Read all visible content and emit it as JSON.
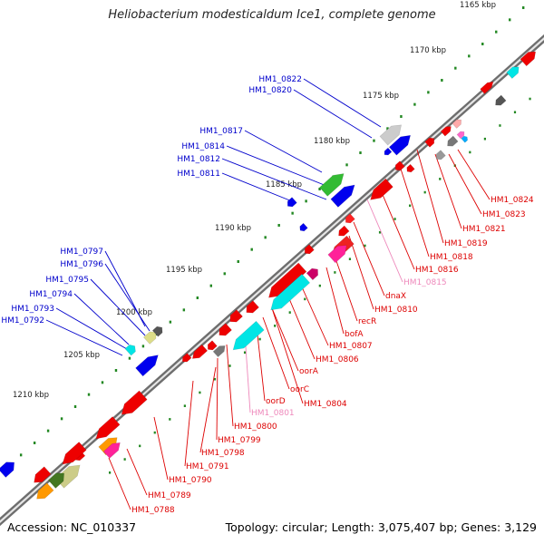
{
  "title": "Heliobacterium modesticaldum Ice1, complete genome",
  "accession": "Accession: NC_010337",
  "topology": "Topology: circular; Length: 3,075,407 bp; Genes: 3,129",
  "colors": {
    "forward_label": "#0000cc",
    "reverse_label": "#dd0000",
    "pseudo_label": "#ee88bb",
    "ruler_tick": "#228822",
    "backbone": "#777777"
  },
  "ruler": [
    "1165 kbp",
    "1170 kbp",
    "1175 kbp",
    "1180 kbp",
    "1185 kbp",
    "1190 kbp",
    "1195 kbp",
    "1200 kbp",
    "1205 kbp",
    "1210 kbp"
  ],
  "forward_labels": [
    "HM1_0822",
    "HM1_0820",
    "HM1_0817",
    "HM1_0814",
    "HM1_0812",
    "HM1_0811",
    "HM1_0797",
    "HM1_0796",
    "HM1_0795",
    "HM1_0794",
    "HM1_0793",
    "HM1_0792"
  ],
  "reverse_labels": [
    "HM1_0824",
    "HM1_0823",
    "HM1_0821",
    "HM1_0819",
    "HM1_0818",
    "HM1_0816",
    "HM1_0815",
    "dnaX",
    "HM1_0810",
    "recR",
    "bofA",
    "HM1_0807",
    "HM1_0806",
    "oorA",
    "oorC",
    "oorD",
    "HM1_0804",
    "HM1_0801",
    "HM1_0800",
    "HM1_0799",
    "HM1_0798",
    "HM1_0791",
    "HM1_0790",
    "HM1_0789",
    "HM1_0788"
  ]
}
